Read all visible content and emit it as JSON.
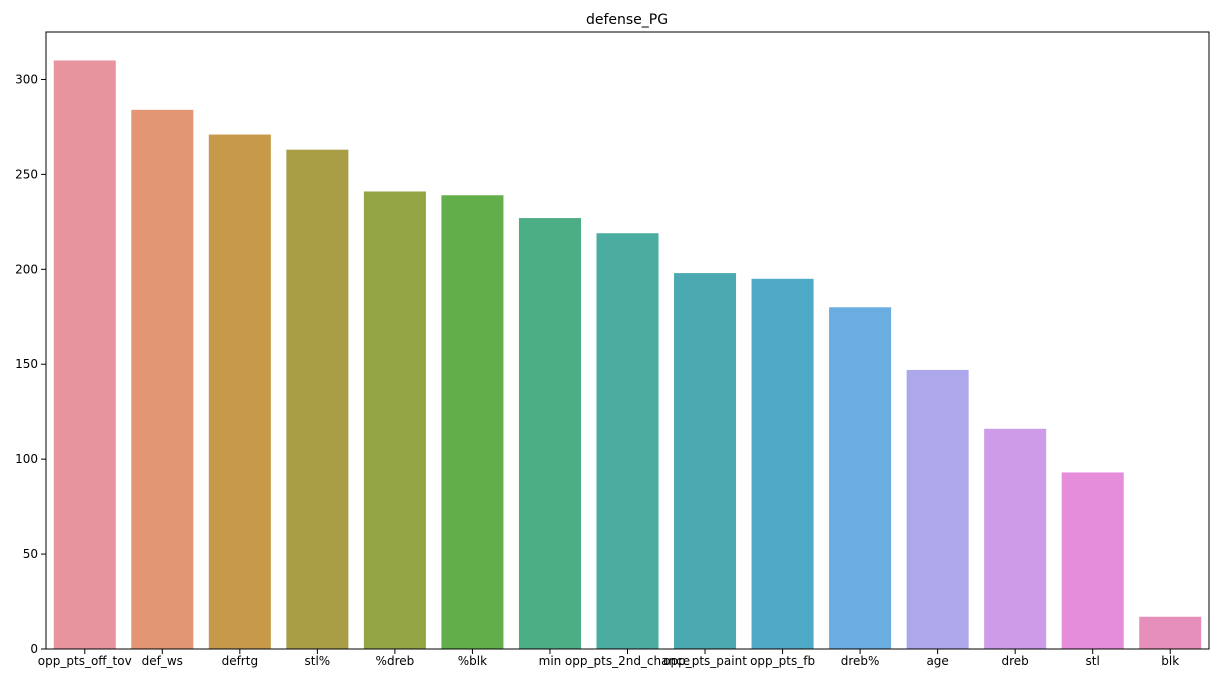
{
  "chart_data": {
    "type": "bar",
    "title": "defense_PG",
    "xlabel": "",
    "ylabel": "",
    "ylim": [
      0,
      325
    ],
    "yticks": [
      0,
      50,
      100,
      150,
      200,
      250,
      300
    ],
    "grid": false,
    "categories": [
      "opp_pts_off_tov",
      "def_ws",
      "defrtg",
      "stl%",
      "%dreb",
      "%blk",
      "min",
      "opp_pts_2nd_chance",
      "opp_pts_paint",
      "opp_pts_fb",
      "dreb%",
      "age",
      "dreb",
      "stl",
      "blk"
    ],
    "values": [
      310,
      284,
      271,
      263,
      241,
      239,
      227,
      219,
      198,
      195,
      180,
      147,
      116,
      93,
      17
    ],
    "colors": [
      "#e8949f",
      "#e39673",
      "#c69a48",
      "#a99d46",
      "#93a545",
      "#62ae4a",
      "#4bae84",
      "#4aad9f",
      "#4baab1",
      "#4eaac7",
      "#6aade0",
      "#ada8ec",
      "#cd9be7",
      "#e58cdb",
      "#e68fba"
    ]
  }
}
